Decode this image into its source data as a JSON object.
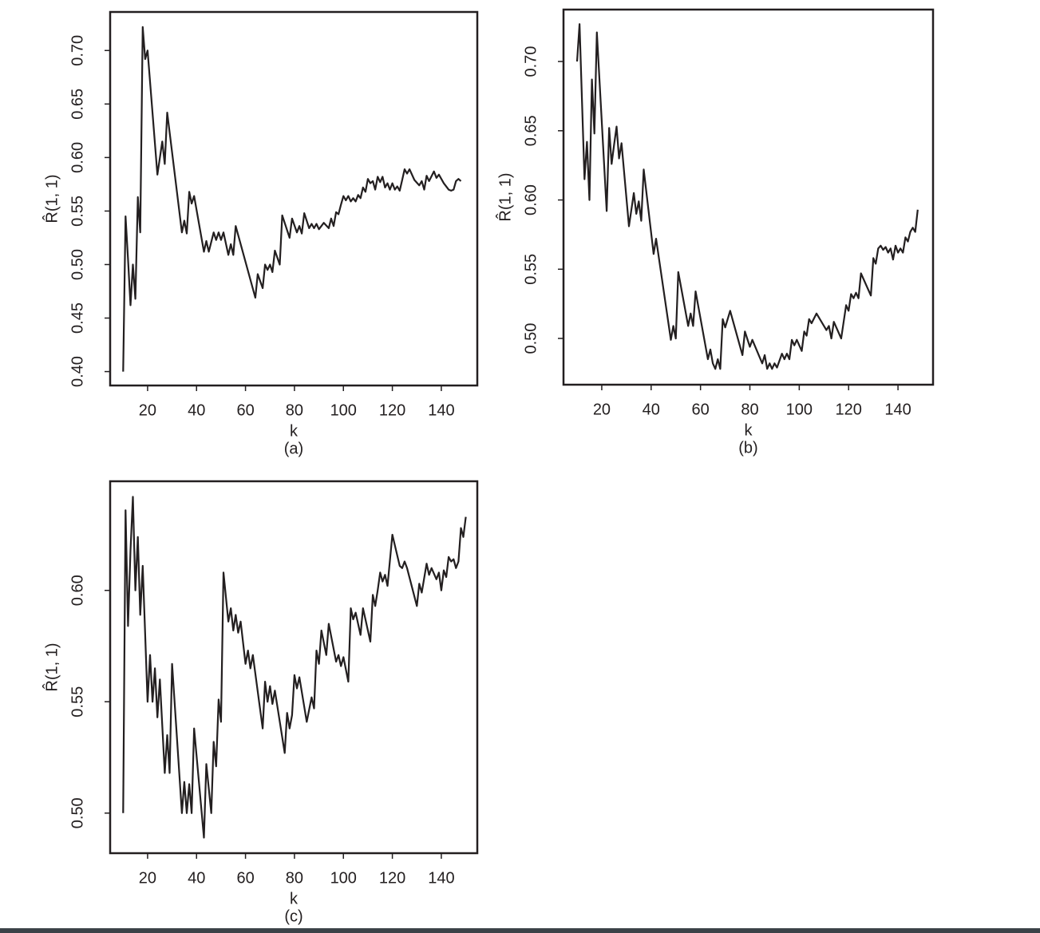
{
  "chart_data": [
    {
      "type": "line",
      "subtitle": "(a)",
      "x_label": "k",
      "y_label": "R̂(1, 1)",
      "color": "#231f20",
      "xlim": [
        4.7,
        154.7
      ],
      "ylim": [
        0.387,
        0.736
      ],
      "xticks": [
        20,
        40,
        60,
        80,
        100,
        120,
        140
      ],
      "yticks": [
        {
          "value": 0.4,
          "label": "0.40"
        },
        0.45,
        {
          "value": 0.5,
          "label": "0.50"
        },
        0.55,
        {
          "value": 0.6,
          "label": "0.60"
        },
        0.65,
        {
          "value": 0.7,
          "label": "0.70"
        }
      ],
      "x": [
        10,
        11,
        12,
        13,
        14,
        15,
        16,
        17,
        18,
        19,
        20,
        24,
        26,
        27,
        28,
        34,
        35,
        36,
        37,
        38,
        39,
        43,
        44,
        45,
        47,
        48,
        49,
        50,
        51,
        53,
        54,
        55,
        56,
        64,
        65,
        67,
        68,
        69,
        70,
        71,
        72,
        74,
        75,
        78,
        79,
        81,
        82,
        83,
        84,
        86,
        87,
        88,
        89,
        90,
        92,
        94,
        95,
        96,
        97,
        98,
        99,
        100,
        101,
        102,
        103,
        104,
        105,
        106,
        107,
        108,
        109,
        110,
        111,
        112,
        113,
        114,
        115,
        116,
        117,
        118,
        119,
        120,
        121,
        122,
        123,
        124,
        125,
        126,
        127,
        129,
        131,
        132,
        133,
        134,
        135,
        137,
        138,
        139,
        141,
        143,
        144,
        145,
        146,
        147,
        148
      ],
      "values": [
        0.4,
        0.545,
        0.505,
        0.462,
        0.5,
        0.468,
        0.563,
        0.53,
        0.722,
        0.692,
        0.7,
        0.584,
        0.615,
        0.594,
        0.642,
        0.53,
        0.541,
        0.529,
        0.568,
        0.557,
        0.564,
        0.512,
        0.522,
        0.512,
        0.53,
        0.523,
        0.53,
        0.523,
        0.53,
        0.509,
        0.519,
        0.509,
        0.536,
        0.469,
        0.491,
        0.478,
        0.5,
        0.495,
        0.5,
        0.493,
        0.513,
        0.5,
        0.546,
        0.525,
        0.543,
        0.53,
        0.536,
        0.529,
        0.548,
        0.534,
        0.538,
        0.534,
        0.538,
        0.533,
        0.539,
        0.534,
        0.543,
        0.536,
        0.549,
        0.547,
        0.556,
        0.564,
        0.56,
        0.564,
        0.559,
        0.562,
        0.559,
        0.565,
        0.562,
        0.572,
        0.568,
        0.58,
        0.576,
        0.578,
        0.57,
        0.582,
        0.577,
        0.582,
        0.572,
        0.576,
        0.57,
        0.576,
        0.57,
        0.573,
        0.569,
        0.579,
        0.589,
        0.585,
        0.589,
        0.579,
        0.574,
        0.578,
        0.57,
        0.583,
        0.578,
        0.587,
        0.581,
        0.584,
        0.576,
        0.57,
        0.569,
        0.57,
        0.578,
        0.58,
        0.578
      ]
    },
    {
      "type": "line",
      "subtitle": "(b)",
      "x_label": "k",
      "y_label": "R̂(1, 1)",
      "color": "#231f20",
      "xlim": [
        4.5,
        154.2
      ],
      "ylim": [
        0.4666,
        0.7375
      ],
      "xticks": [
        20,
        40,
        60,
        80,
        100,
        120,
        140
      ],
      "yticks": [
        {
          "value": 0.5,
          "label": "0.50"
        },
        0.55,
        {
          "value": 0.6,
          "label": "0.60"
        },
        0.65,
        {
          "value": 0.7,
          "label": "0.70"
        }
      ],
      "x": [
        10,
        11,
        13,
        14,
        15,
        16,
        17,
        18,
        22,
        23,
        24,
        25,
        26,
        27,
        28,
        31,
        33,
        34,
        35,
        36,
        37,
        41,
        42,
        48,
        49,
        50,
        51,
        55,
        56,
        57,
        58,
        63,
        64,
        65,
        66,
        67,
        68,
        69,
        70,
        72,
        77,
        78,
        80,
        81,
        85,
        86,
        87,
        88,
        89,
        90,
        91,
        93,
        94,
        95,
        96,
        97,
        98,
        99,
        101,
        102,
        103,
        104,
        105,
        107,
        111,
        112,
        113,
        114,
        117,
        119,
        120,
        121,
        122,
        123,
        124,
        125,
        129,
        130,
        131,
        132,
        133,
        134,
        135,
        136,
        137,
        138,
        139,
        140,
        141,
        142,
        143,
        144,
        145,
        146,
        147,
        148
      ],
      "values": [
        0.7,
        0.727,
        0.615,
        0.642,
        0.6,
        0.687,
        0.648,
        0.721,
        0.592,
        0.652,
        0.626,
        0.64,
        0.653,
        0.63,
        0.641,
        0.581,
        0.605,
        0.59,
        0.599,
        0.585,
        0.622,
        0.561,
        0.572,
        0.499,
        0.509,
        0.5,
        0.548,
        0.509,
        0.518,
        0.509,
        0.534,
        0.485,
        0.492,
        0.482,
        0.478,
        0.485,
        0.478,
        0.514,
        0.508,
        0.52,
        0.488,
        0.505,
        0.494,
        0.499,
        0.482,
        0.488,
        0.478,
        0.482,
        0.478,
        0.482,
        0.479,
        0.489,
        0.485,
        0.489,
        0.485,
        0.499,
        0.495,
        0.499,
        0.491,
        0.505,
        0.502,
        0.514,
        0.511,
        0.518,
        0.506,
        0.509,
        0.5,
        0.512,
        0.5,
        0.524,
        0.52,
        0.532,
        0.529,
        0.533,
        0.529,
        0.547,
        0.531,
        0.558,
        0.554,
        0.565,
        0.567,
        0.564,
        0.566,
        0.562,
        0.565,
        0.557,
        0.567,
        0.562,
        0.565,
        0.562,
        0.573,
        0.57,
        0.577,
        0.58,
        0.577,
        0.593
      ]
    },
    {
      "type": "line",
      "subtitle": "(c)",
      "x_label": "k",
      "y_label": "R̂(1, 1)",
      "color": "#231f20",
      "xlim": [
        4.7,
        154.7
      ],
      "ylim": [
        0.482,
        0.649
      ],
      "xticks": [
        20,
        40,
        60,
        80,
        100,
        120,
        140
      ],
      "yticks": [
        {
          "value": 0.5,
          "label": "0.50"
        },
        0.55,
        {
          "value": 0.6,
          "label": "0.60"
        }
      ],
      "x": [
        10,
        11,
        12,
        13,
        14,
        15,
        16,
        17,
        18,
        20,
        21,
        22,
        23,
        24,
        25,
        27,
        28,
        29,
        30,
        34,
        35,
        36,
        37,
        38,
        39,
        43,
        44,
        46,
        47,
        48,
        49,
        50,
        51,
        53,
        54,
        55,
        56,
        57,
        58,
        60,
        61,
        62,
        63,
        67,
        68,
        69,
        70,
        71,
        72,
        76,
        77,
        78,
        79,
        80,
        81,
        82,
        85,
        87,
        88,
        89,
        90,
        91,
        93,
        94,
        97,
        98,
        99,
        100,
        102,
        103,
        104,
        105,
        107,
        108,
        111,
        112,
        113,
        114,
        115,
        116,
        117,
        118,
        120,
        123,
        124,
        125,
        126,
        130,
        131,
        132,
        134,
        135,
        136,
        138,
        139,
        140,
        141,
        142,
        143,
        144,
        145,
        146,
        147,
        148,
        149,
        150
      ],
      "values": [
        0.5,
        0.636,
        0.584,
        0.618,
        0.642,
        0.6,
        0.624,
        0.589,
        0.611,
        0.55,
        0.571,
        0.55,
        0.565,
        0.543,
        0.56,
        0.518,
        0.535,
        0.518,
        0.567,
        0.5,
        0.514,
        0.5,
        0.513,
        0.5,
        0.538,
        0.489,
        0.522,
        0.5,
        0.532,
        0.521,
        0.551,
        0.541,
        0.608,
        0.586,
        0.592,
        0.582,
        0.589,
        0.581,
        0.586,
        0.567,
        0.573,
        0.565,
        0.571,
        0.538,
        0.559,
        0.55,
        0.557,
        0.549,
        0.555,
        0.527,
        0.545,
        0.538,
        0.544,
        0.562,
        0.556,
        0.561,
        0.541,
        0.552,
        0.547,
        0.573,
        0.567,
        0.582,
        0.571,
        0.585,
        0.568,
        0.571,
        0.566,
        0.57,
        0.559,
        0.592,
        0.587,
        0.59,
        0.58,
        0.592,
        0.577,
        0.598,
        0.593,
        0.6,
        0.608,
        0.604,
        0.607,
        0.602,
        0.625,
        0.611,
        0.61,
        0.613,
        0.61,
        0.593,
        0.603,
        0.599,
        0.612,
        0.607,
        0.61,
        0.605,
        0.608,
        0.6,
        0.609,
        0.606,
        0.615,
        0.613,
        0.614,
        0.61,
        0.613,
        0.628,
        0.624,
        0.633
      ]
    }
  ]
}
